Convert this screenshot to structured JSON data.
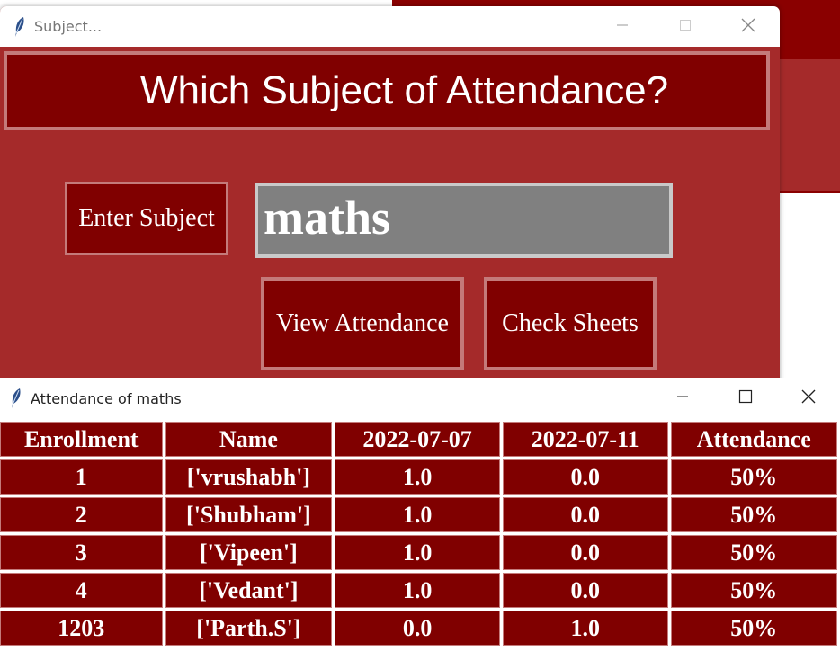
{
  "subject_window": {
    "title": "Subject...",
    "heading": "Which Subject of Attendance?",
    "enter_label": "Enter Subject",
    "subject_value": "maths",
    "view_button": "View Attendance",
    "check_button": "Check Sheets"
  },
  "attendance_window": {
    "title": "Attendance of maths",
    "headers": [
      "Enrollment",
      "Name",
      "2022-07-07",
      "2022-07-11",
      "Attendance"
    ],
    "rows": [
      [
        "1",
        "['vrushabh']",
        "1.0",
        "0.0",
        "50%"
      ],
      [
        "2",
        "['Shubham']",
        "1.0",
        "0.0",
        "50%"
      ],
      [
        "3",
        "['Vipeen']",
        "1.0",
        "0.0",
        "50%"
      ],
      [
        "4",
        "['Vedant']",
        "1.0",
        "0.0",
        "50%"
      ],
      [
        "1203",
        "['Parth.S']",
        "0.0",
        "1.0",
        "50%"
      ]
    ]
  },
  "icons": {
    "app": "feather-icon",
    "minimize": "minimize-icon",
    "maximize": "maximize-icon",
    "close": "close-icon"
  },
  "colors": {
    "panel_bg": "#a52a2a",
    "widget_bg": "#800000",
    "widget_border": "#c47a7a",
    "input_bg": "#808080"
  }
}
